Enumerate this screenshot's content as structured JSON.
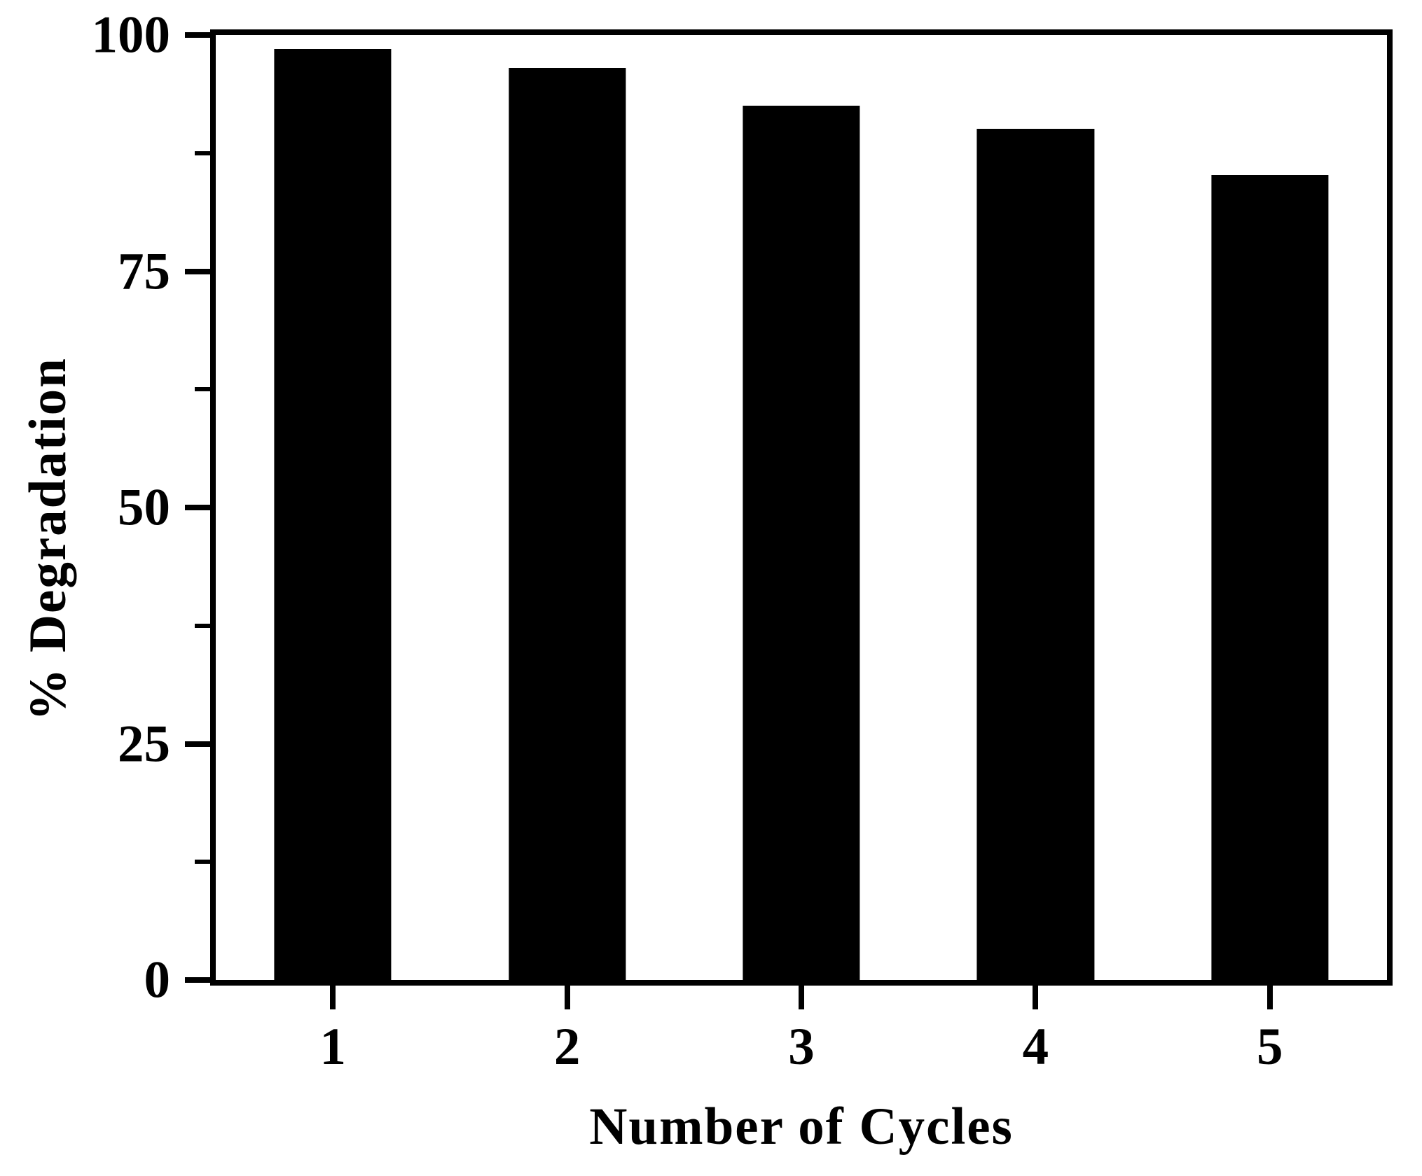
{
  "figure": {
    "background": "#ffffff"
  },
  "chart_data": {
    "type": "bar",
    "title": "",
    "xlabel": "Number of Cycles",
    "ylabel": "% Degradation",
    "categories": [
      "1",
      "2",
      "3",
      "4",
      "5"
    ],
    "values": [
      98.5,
      96.5,
      92.5,
      90.1,
      85.2
    ],
    "ylim": [
      0,
      100
    ],
    "yticks_major": [
      0,
      25,
      50,
      75,
      100
    ],
    "yticks_minor": [
      12.5,
      37.5,
      62.5,
      87.5
    ],
    "bar_width_fraction_of_slot": 0.5,
    "bar_color": "#000000",
    "axis_color": "#000000",
    "text_color": "#000000",
    "grid": false,
    "legend": "none"
  }
}
